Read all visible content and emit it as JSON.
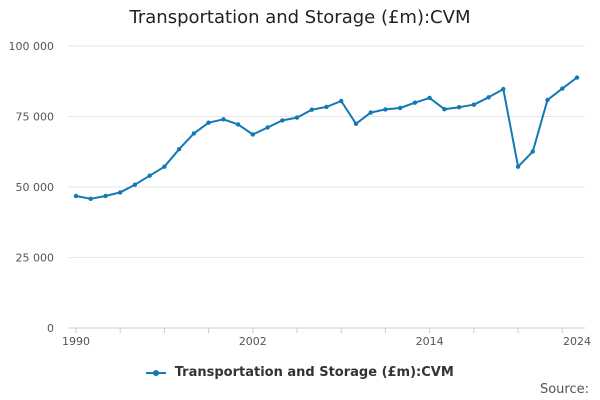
{
  "colors": {
    "series": "#1379b5",
    "grid": "#e6e6e6",
    "axis": "#cccccc",
    "text": "#555555"
  },
  "source_label": "Source:",
  "chart_data": {
    "type": "line",
    "title": "Transportation and Storage (£m):CVM",
    "xlabel": "",
    "ylabel": "",
    "xlim": [
      1990,
      2024
    ],
    "ylim": [
      0,
      100000
    ],
    "x_ticks": [
      1990,
      2002,
      2014,
      2024
    ],
    "x_tick_labels": [
      "1990",
      "2002",
      "2014",
      "2024"
    ],
    "y_ticks": [
      0,
      25000,
      50000,
      75000,
      100000
    ],
    "y_tick_labels": [
      "0",
      "25 000",
      "50 000",
      "75 000",
      "100 000"
    ],
    "grid": "horizontal",
    "legend_position": "bottom-center",
    "series": [
      {
        "name": "Transportation and Storage (£m):CVM",
        "x": [
          1990,
          1991,
          1992,
          1993,
          1994,
          1995,
          1996,
          1997,
          1998,
          1999,
          2000,
          2001,
          2002,
          2003,
          2004,
          2005,
          2006,
          2007,
          2008,
          2009,
          2010,
          2011,
          2012,
          2013,
          2014,
          2015,
          2016,
          2017,
          2018,
          2019,
          2020,
          2021,
          2022,
          2023,
          2024
        ],
        "values": [
          46800,
          45800,
          46800,
          48100,
          50800,
          54000,
          57200,
          63400,
          69000,
          72800,
          74000,
          72200,
          68600,
          71100,
          73600,
          74600,
          77400,
          78400,
          80500,
          72400,
          76400,
          77500,
          78000,
          79900,
          81600,
          77600,
          78300,
          79200,
          81800,
          84700,
          57200,
          62600,
          80900,
          84900,
          88800
        ]
      }
    ]
  }
}
